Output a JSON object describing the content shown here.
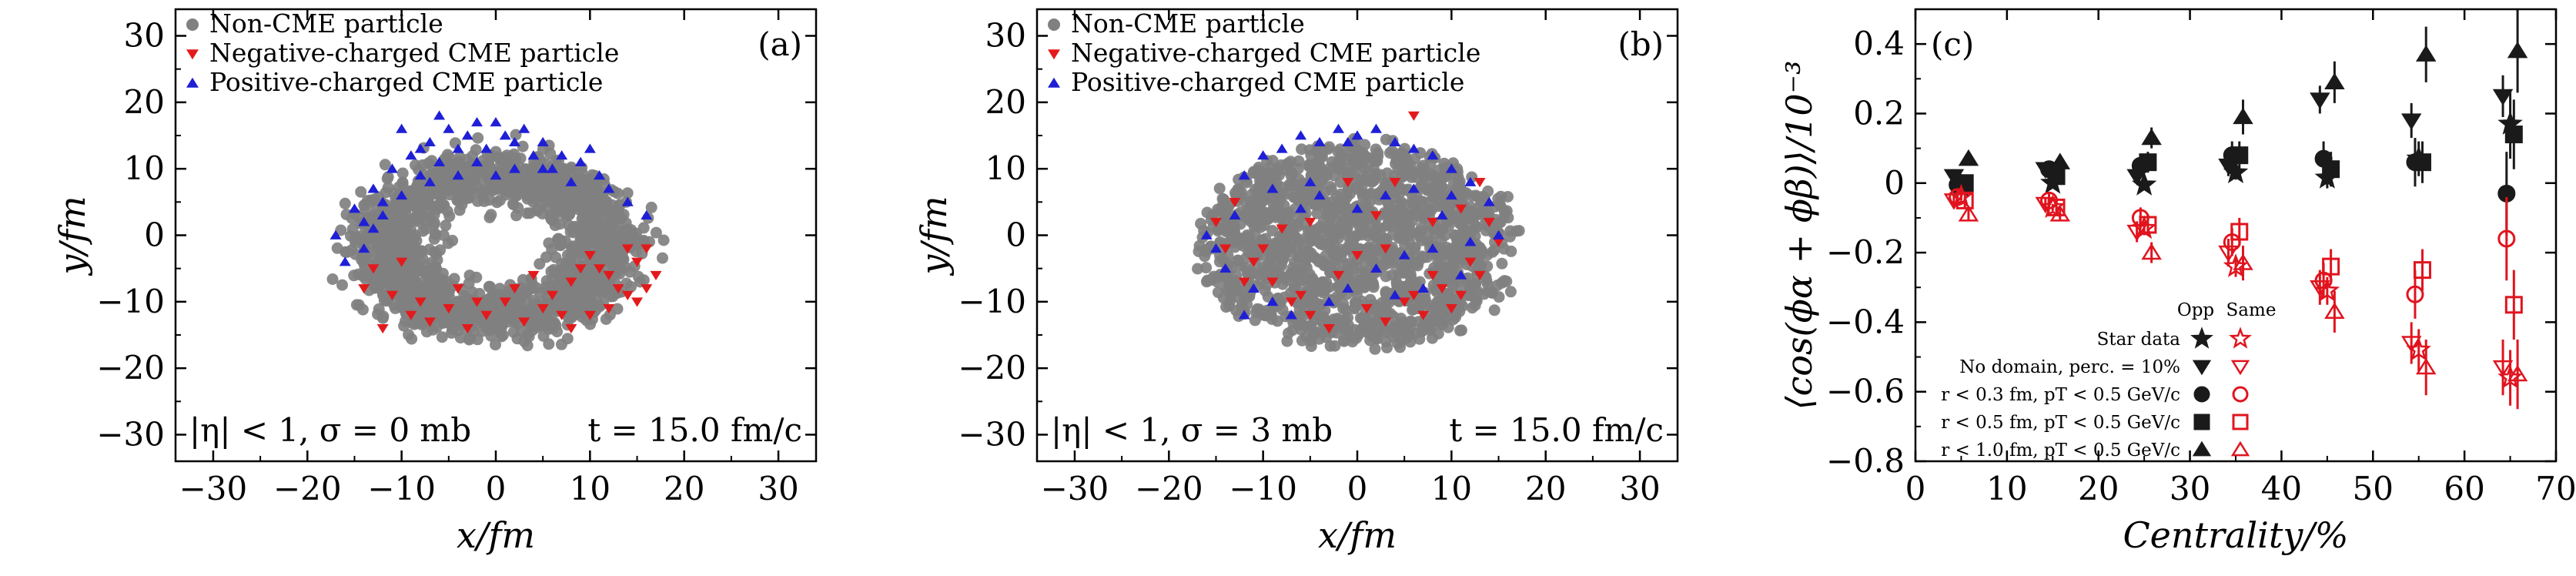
{
  "chart_data": [
    {
      "type": "scatter",
      "panel_label": "(a)",
      "xlabel": "x/fm",
      "ylabel": "y/fm",
      "xlim": [
        -34,
        34
      ],
      "ylim": [
        -34,
        34
      ],
      "xticks": [
        -30,
        -20,
        -10,
        0,
        10,
        20,
        30
      ],
      "yticks": [
        -30,
        -20,
        -10,
        0,
        10,
        20,
        30
      ],
      "annotation_left": "|η| < 1,  σ = 0 mb",
      "annotation_right": "t = 15.0 fm/c",
      "legend_location": "upper-left",
      "series": [
        {
          "name": "Non-CME particle",
          "marker": "circle",
          "color": "#808080",
          "count": 1600,
          "distribution": "ellipse ring",
          "x_range": [
            -20,
            20
          ],
          "y_range": [
            -19,
            19
          ]
        },
        {
          "name": "Negative-charged CME particle",
          "marker": "triangle-down",
          "color": "#e31a1c",
          "points": [
            [
              -12,
              -14
            ],
            [
              -9,
              -12
            ],
            [
              -7,
              -13
            ],
            [
              -5,
              -11
            ],
            [
              -3,
              -14
            ],
            [
              -1,
              -12
            ],
            [
              1,
              -10
            ],
            [
              3,
              -13
            ],
            [
              5,
              -11
            ],
            [
              6,
              -9
            ],
            [
              8,
              -7
            ],
            [
              9,
              -5
            ],
            [
              10,
              -3
            ],
            [
              11,
              -5
            ],
            [
              12,
              -6
            ],
            [
              13,
              -8
            ],
            [
              14,
              -9
            ],
            [
              15,
              -10
            ],
            [
              16,
              -8
            ],
            [
              17,
              -6
            ],
            [
              12,
              -11
            ],
            [
              10,
              -12
            ],
            [
              8,
              -14
            ],
            [
              -10,
              -4
            ],
            [
              -13,
              -5
            ],
            [
              -14,
              -8
            ],
            [
              -11,
              -9
            ],
            [
              -4,
              -8
            ],
            [
              2,
              -8
            ],
            [
              14,
              -2
            ],
            [
              15,
              -4
            ],
            [
              16,
              -2
            ],
            [
              -8,
              -10
            ],
            [
              7,
              -12
            ],
            [
              -2,
              -10
            ],
            [
              4,
              -6
            ]
          ]
        },
        {
          "name": "Positive-charged CME particle",
          "marker": "triangle-up",
          "color": "#1f1fd6",
          "points": [
            [
              -15,
              4
            ],
            [
              -13,
              7
            ],
            [
              -11,
              10
            ],
            [
              -9,
              12
            ],
            [
              -7,
              14
            ],
            [
              -5,
              16
            ],
            [
              -3,
              15
            ],
            [
              -1,
              13
            ],
            [
              1,
              15
            ],
            [
              3,
              16
            ],
            [
              5,
              14
            ],
            [
              7,
              12
            ],
            [
              9,
              11
            ],
            [
              11,
              9
            ],
            [
              -16,
              -4
            ],
            [
              -14,
              2
            ],
            [
              -12,
              3
            ],
            [
              -10,
              6
            ],
            [
              -8,
              9
            ],
            [
              -6,
              11
            ],
            [
              -4,
              9
            ],
            [
              -2,
              11
            ],
            [
              0,
              9
            ],
            [
              2,
              10
            ],
            [
              4,
              12
            ],
            [
              6,
              10
            ],
            [
              8,
              8
            ],
            [
              -17,
              0
            ],
            [
              -10,
              16
            ],
            [
              -6,
              18
            ],
            [
              -2,
              17
            ],
            [
              0,
              17
            ],
            [
              2,
              14
            ],
            [
              -14,
              -2
            ],
            [
              -13,
              1
            ],
            [
              -12,
              5
            ],
            [
              -8,
              13
            ],
            [
              -4,
              13
            ],
            [
              -7,
              8
            ],
            [
              5,
              10
            ],
            [
              10,
              13
            ],
            [
              12,
              7
            ],
            [
              14,
              5
            ],
            [
              16,
              3
            ]
          ]
        }
      ]
    },
    {
      "type": "scatter",
      "panel_label": "(b)",
      "xlabel": "x/fm",
      "ylabel": "y/fm",
      "xlim": [
        -34,
        34
      ],
      "ylim": [
        -34,
        34
      ],
      "xticks": [
        -30,
        -20,
        -10,
        0,
        10,
        20,
        30
      ],
      "yticks": [
        -30,
        -20,
        -10,
        0,
        10,
        20,
        30
      ],
      "annotation_left": "|η| < 1,  σ = 3 mb",
      "annotation_right": "t = 15.0 fm/c",
      "legend_location": "upper-left",
      "series": [
        {
          "name": "Non-CME particle",
          "marker": "circle",
          "color": "#808080",
          "count": 1500,
          "distribution": "filled ellipse",
          "x_range": [
            -20,
            20
          ],
          "y_range": [
            -19,
            19
          ]
        },
        {
          "name": "Negative-charged CME particle",
          "marker": "triangle-down",
          "color": "#e31a1c",
          "points": [
            [
              -14,
              -2
            ],
            [
              -11,
              -4
            ],
            [
              -9,
              -7
            ],
            [
              -7,
              -10
            ],
            [
              -5,
              -12
            ],
            [
              -3,
              -14
            ],
            [
              1,
              -11
            ],
            [
              3,
              -13
            ],
            [
              5,
              -10
            ],
            [
              6,
              -9
            ],
            [
              7,
              -12
            ],
            [
              8,
              -6
            ],
            [
              9,
              -8
            ],
            [
              10,
              -11
            ],
            [
              11,
              -9
            ],
            [
              12,
              -4
            ],
            [
              13,
              -6
            ],
            [
              -2,
              -6
            ],
            [
              -6,
              -9
            ],
            [
              -12,
              -7
            ],
            [
              -10,
              -2
            ],
            [
              15,
              -1
            ],
            [
              14,
              2
            ],
            [
              2,
              3
            ],
            [
              4,
              8
            ],
            [
              6,
              18
            ],
            [
              -1,
              8
            ],
            [
              -8,
              1
            ],
            [
              -5,
              2
            ],
            [
              3,
              -2
            ],
            [
              -15,
              2
            ],
            [
              -13,
              5
            ],
            [
              11,
              4
            ],
            [
              13,
              8
            ],
            [
              0,
              -3
            ],
            [
              8,
              2
            ]
          ]
        },
        {
          "name": "Positive-charged CME particle",
          "marker": "triangle-up",
          "color": "#1f1fd6",
          "points": [
            [
              -13,
              3
            ],
            [
              -12,
              9
            ],
            [
              -10,
              12
            ],
            [
              -8,
              13
            ],
            [
              -6,
              15
            ],
            [
              -4,
              14
            ],
            [
              -2,
              16
            ],
            [
              0,
              15
            ],
            [
              2,
              16
            ],
            [
              4,
              14
            ],
            [
              6,
              13
            ],
            [
              8,
              12
            ],
            [
              10,
              10
            ],
            [
              12,
              8
            ],
            [
              14,
              5
            ],
            [
              15,
              0
            ],
            [
              -11,
              -8
            ],
            [
              -9,
              -10
            ],
            [
              -7,
              -12
            ],
            [
              -3,
              -10
            ],
            [
              -1,
              -8
            ],
            [
              2,
              -5
            ],
            [
              4,
              -9
            ],
            [
              -14,
              -5
            ],
            [
              -15,
              -2
            ],
            [
              -16,
              0
            ],
            [
              8,
              -2
            ],
            [
              12,
              -1
            ],
            [
              -4,
              6
            ],
            [
              0,
              4
            ],
            [
              3,
              6
            ],
            [
              -6,
              4
            ],
            [
              10,
              6
            ],
            [
              6,
              7
            ],
            [
              -9,
              7
            ],
            [
              -1,
              14
            ],
            [
              5,
              -3
            ],
            [
              9,
              3
            ],
            [
              -12,
              -12
            ],
            [
              11,
              -6
            ],
            [
              7,
              -8
            ],
            [
              -5,
              8
            ]
          ]
        }
      ]
    },
    {
      "type": "scatter",
      "panel_label": "(c)",
      "xlabel": "Centrality/%",
      "ylabel": "⟨cos(ϕα + ϕβ)⟩/10⁻³",
      "xlim": [
        0,
        70
      ],
      "ylim": [
        -0.8,
        0.5
      ],
      "xticks": [
        0,
        10,
        20,
        30,
        40,
        50,
        60,
        70
      ],
      "yticks": [
        -0.8,
        -0.6,
        -0.4,
        -0.2,
        0,
        0.2,
        0.4
      ],
      "legend_location": "lower-left",
      "legend_header": [
        "Opp",
        "Same"
      ],
      "legend_rows": [
        "Star data",
        "No domain, perc. = 10%",
        "r < 0.3 fm, pT < 0.5 GeV/c",
        "r < 0.5 fm, pT < 0.5 GeV/c",
        "r < 1.0 fm, pT < 0.5 GeV/c"
      ],
      "legend_rows_markers": [
        "star",
        "triangle-down",
        "circle",
        "square",
        "triangle-up"
      ],
      "opp_color": "#1a1a1a",
      "same_color": "#e0141e",
      "series": [
        {
          "name": "Star data",
          "group": "Opp",
          "marker": "star",
          "filled": true,
          "x": [
            5,
            15,
            25,
            35,
            45,
            55,
            65
          ],
          "y": [
            -0.01,
            0.0,
            -0.005,
            0.03,
            0.015,
            0.07,
            0.17
          ],
          "err": [
            0.01,
            0.01,
            0.015,
            0.02,
            0.03,
            0.05,
            0.1
          ]
        },
        {
          "name": "No domain, perc. = 10%",
          "group": "Opp",
          "marker": "triangle-down",
          "filled": true,
          "x": [
            4.2,
            14.2,
            24.2,
            34.2,
            44.2,
            54.2,
            64.2
          ],
          "y": [
            0.02,
            0.04,
            0.02,
            0.05,
            0.24,
            0.18,
            0.25
          ],
          "err": [
            0.02,
            0.02,
            0.02,
            0.03,
            0.04,
            0.05,
            0.06
          ]
        },
        {
          "name": "r < 0.3 fm, pT < 0.5 GeV/c",
          "group": "Opp",
          "marker": "circle",
          "filled": true,
          "x": [
            4.6,
            14.6,
            24.6,
            34.6,
            44.6,
            54.6,
            64.6
          ],
          "y": [
            -0.005,
            0.04,
            0.05,
            0.08,
            0.07,
            0.06,
            -0.03
          ],
          "err": [
            0.02,
            0.02,
            0.03,
            0.04,
            0.05,
            0.07,
            0.12
          ]
        },
        {
          "name": "r < 0.5 fm, pT < 0.5 GeV/c",
          "group": "Opp",
          "marker": "square",
          "filled": true,
          "x": [
            5.4,
            15.4,
            25.4,
            35.4,
            45.4,
            55.4,
            65.4
          ],
          "y": [
            0.0,
            0.02,
            0.06,
            0.08,
            0.04,
            0.06,
            0.14
          ],
          "err": [
            0.02,
            0.02,
            0.03,
            0.04,
            0.05,
            0.06,
            0.1
          ]
        },
        {
          "name": "r < 1.0 fm, pT < 0.5 GeV/c",
          "group": "Opp",
          "marker": "triangle-up",
          "filled": true,
          "x": [
            5.8,
            15.8,
            25.8,
            35.8,
            45.8,
            55.8,
            65.8
          ],
          "y": [
            0.07,
            0.06,
            0.13,
            0.19,
            0.29,
            0.37,
            0.38
          ],
          "err": [
            0.02,
            0.02,
            0.03,
            0.05,
            0.06,
            0.08,
            0.12
          ]
        },
        {
          "name": "Star data",
          "group": "Same",
          "marker": "star",
          "filled": false,
          "x": [
            5,
            15,
            25,
            35,
            45,
            55,
            65
          ],
          "y": [
            -0.04,
            -0.07,
            -0.13,
            -0.24,
            -0.31,
            -0.48,
            -0.56
          ],
          "err": [
            0.01,
            0.01,
            0.02,
            0.03,
            0.04,
            0.06,
            0.08
          ]
        },
        {
          "name": "No domain, perc. = 10%",
          "group": "Same",
          "marker": "triangle-down",
          "filled": false,
          "x": [
            4.2,
            14.2,
            24.2,
            34.2,
            44.2,
            54.2,
            64.2
          ],
          "y": [
            -0.05,
            -0.06,
            -0.14,
            -0.2,
            -0.3,
            -0.46,
            -0.53
          ],
          "err": [
            0.02,
            0.02,
            0.03,
            0.04,
            0.05,
            0.06,
            0.08
          ]
        },
        {
          "name": "r < 0.3 fm, pT < 0.5 GeV/c",
          "group": "Same",
          "marker": "circle",
          "filled": false,
          "x": [
            4.6,
            14.6,
            24.6,
            34.6,
            44.6,
            54.6,
            64.6
          ],
          "y": [
            -0.04,
            -0.05,
            -0.1,
            -0.17,
            -0.28,
            -0.32,
            -0.16
          ],
          "err": [
            0.02,
            0.02,
            0.03,
            0.04,
            0.05,
            0.07,
            0.12
          ]
        },
        {
          "name": "r < 0.5 fm, pT < 0.5 GeV/c",
          "group": "Same",
          "marker": "square",
          "filled": false,
          "x": [
            5.4,
            15.4,
            25.4,
            35.4,
            45.4,
            55.4,
            65.4
          ],
          "y": [
            -0.05,
            -0.07,
            -0.12,
            -0.14,
            -0.24,
            -0.25,
            -0.35
          ],
          "err": [
            0.02,
            0.02,
            0.03,
            0.04,
            0.05,
            0.06,
            0.1
          ]
        },
        {
          "name": "r < 1.0 fm, pT < 0.5 GeV/c",
          "group": "Same",
          "marker": "triangle-up",
          "filled": false,
          "x": [
            5.8,
            15.8,
            25.8,
            35.8,
            45.8,
            55.8,
            65.8
          ],
          "y": [
            -0.09,
            -0.09,
            -0.2,
            -0.23,
            -0.37,
            -0.53,
            -0.55
          ],
          "err": [
            0.02,
            0.02,
            0.03,
            0.05,
            0.06,
            0.08,
            0.1
          ]
        }
      ]
    }
  ]
}
